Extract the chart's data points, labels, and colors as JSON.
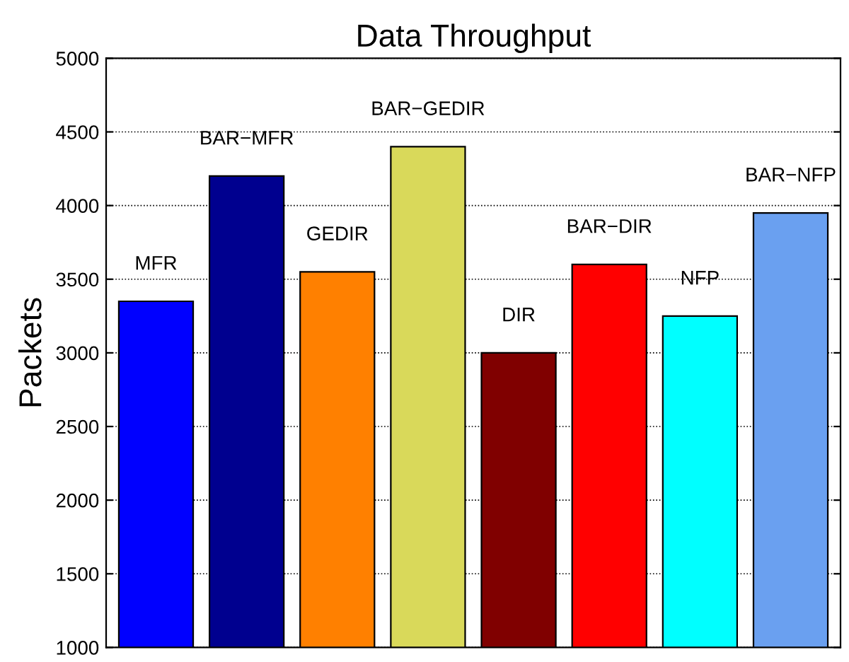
{
  "chart_data": {
    "type": "bar",
    "title": "Data Throughput",
    "ylabel": "Packets",
    "categories": [
      "MFR",
      "BAR−MFR",
      "GEDIR",
      "BAR−GEDIR",
      "DIR",
      "BAR−DIR",
      "NFP",
      "BAR−NFP"
    ],
    "values": [
      3350,
      4200,
      3550,
      4400,
      3000,
      3600,
      3250,
      3950
    ],
    "colors": [
      "#0000ff",
      "#00008f",
      "#ff8000",
      "#d9d95a",
      "#800000",
      "#ff0000",
      "#00ffff",
      "#6aa0f0"
    ],
    "ylim": [
      1000,
      5000
    ],
    "yticks": [
      1000,
      1500,
      2000,
      2500,
      3000,
      3500,
      4000,
      4500,
      5000
    ],
    "grid": "y",
    "tick_labels": "y"
  }
}
